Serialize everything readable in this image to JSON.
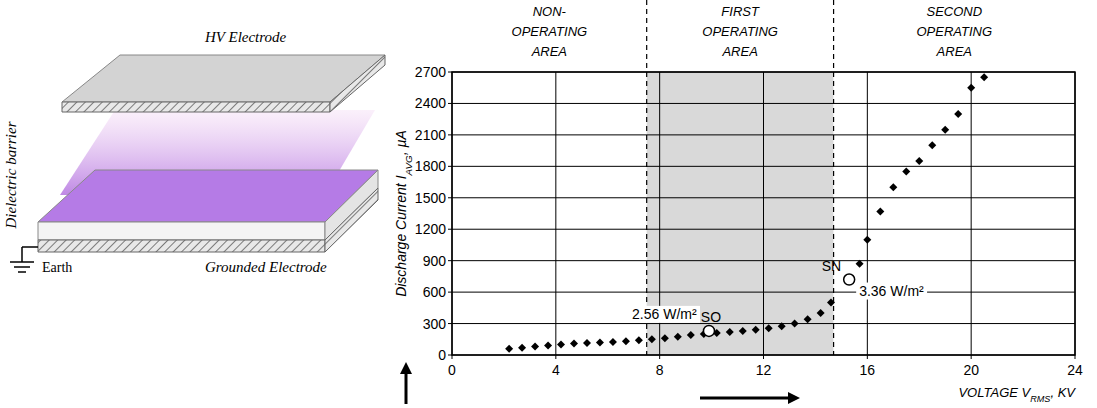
{
  "chart_data": {
    "type": "scatter",
    "xlabel": {
      "text": "VOLTAGE V",
      "subscript": "RMS",
      "suffix": ", KV"
    },
    "ylabel": {
      "text": "Discharge Current I",
      "subscript": "AVG",
      "suffix": ", µA"
    },
    "x": [
      2.2,
      2.7,
      3.2,
      3.7,
      4.2,
      4.7,
      5.2,
      5.7,
      6.2,
      6.7,
      7.2,
      7.7,
      8.2,
      8.7,
      9.2,
      9.7,
      10.2,
      10.7,
      11.2,
      11.7,
      12.2,
      12.7,
      13.2,
      13.7,
      14.2,
      14.6,
      15.7,
      16.0,
      16.5,
      17.0,
      17.5,
      18.0,
      18.5,
      19.0,
      19.5,
      20.0,
      20.5
    ],
    "series": [
      {
        "color": "#000000",
        "marker": "diamond",
        "values": [
          60,
          70,
          80,
          90,
          100,
          110,
          115,
          120,
          125,
          130,
          140,
          150,
          160,
          175,
          190,
          200,
          210,
          220,
          230,
          240,
          255,
          275,
          300,
          340,
          400,
          500,
          870,
          1100,
          1370,
          1600,
          1750,
          1850,
          2000,
          2150,
          2300,
          2550,
          2650
        ]
      }
    ],
    "xlim": [
      0,
      24
    ],
    "xticks": [
      0,
      4,
      8,
      12,
      16,
      20,
      24
    ],
    "ylim": [
      0,
      2700
    ],
    "yticks": [
      0,
      300,
      600,
      900,
      1200,
      1500,
      1800,
      2100,
      2400,
      2700
    ],
    "grid": true,
    "regions": [
      {
        "label": "NON-OPERATING AREA",
        "from": 0,
        "to": 7.5,
        "color": "#ffffff"
      },
      {
        "label": "FIRST OPERATING AREA",
        "from": 7.5,
        "to": 14.7,
        "color": "#d9d9d9"
      },
      {
        "label": "SECOND OPERATING AREA",
        "from": 14.7,
        "to": 24,
        "color": "#ffffff"
      }
    ],
    "annotations": [
      {
        "label": "SO",
        "x": 9.9,
        "y": 230,
        "text": "2.56 W/m²"
      },
      {
        "label": "SN",
        "x": 15.3,
        "y": 720,
        "text": "3.36 W/m²"
      }
    ]
  },
  "diagram": {
    "labels": {
      "hv_electrode": "HV Electrode",
      "dielectric_barrier": "Dielectric barrier",
      "earth": "Earth",
      "grounded_electrode": "Grounded Electrode"
    }
  }
}
